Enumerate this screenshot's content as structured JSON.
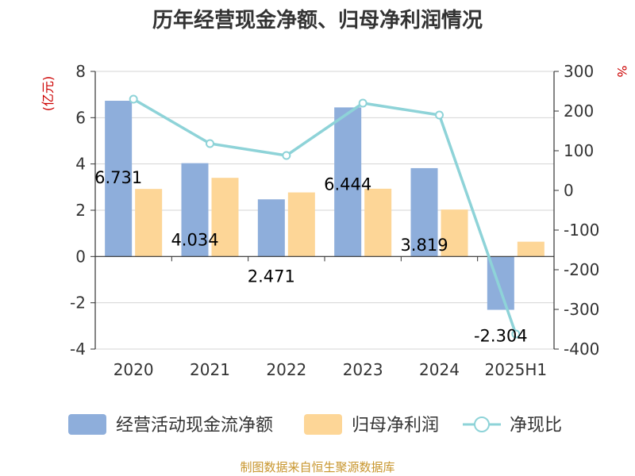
{
  "chart_data": {
    "type": "bar",
    "title": "历年经营现金净额、归母净利润情况",
    "categories": [
      "2020",
      "2021",
      "2022",
      "2023",
      "2024",
      "2025H1"
    ],
    "left_axis": {
      "unit": "(亿元)",
      "ylim": [
        -4,
        8
      ],
      "ticks": [
        "8",
        "6",
        "4",
        "2",
        "0",
        "-2",
        "-4"
      ]
    },
    "right_axis": {
      "unit": "%",
      "ylim": [
        -400,
        300
      ],
      "ticks": [
        "300",
        "200",
        "100",
        "0",
        "-100",
        "-200",
        "-300",
        "-400"
      ]
    },
    "series": [
      {
        "name": "经营活动现金流净额",
        "type": "bar",
        "axis": "left",
        "color": "#8eaedb",
        "values": [
          6.731,
          4.034,
          2.471,
          6.444,
          3.819,
          -2.304
        ],
        "labels": [
          "6.731",
          "4.034",
          "2.471",
          "6.444",
          "3.819",
          "-2.304"
        ]
      },
      {
        "name": "归母净利润",
        "type": "bar",
        "axis": "left",
        "color": "#fdd697",
        "values": [
          2.92,
          3.4,
          2.77,
          2.93,
          2.03,
          0.64
        ]
      },
      {
        "name": "净现比",
        "type": "line",
        "axis": "right",
        "color": "#8ed3d8",
        "values": [
          230,
          118,
          88,
          220,
          190,
          -362
        ]
      }
    ],
    "grid": true,
    "legend_position": "bottom"
  },
  "source": "制图数据来自恒生聚源数据库"
}
